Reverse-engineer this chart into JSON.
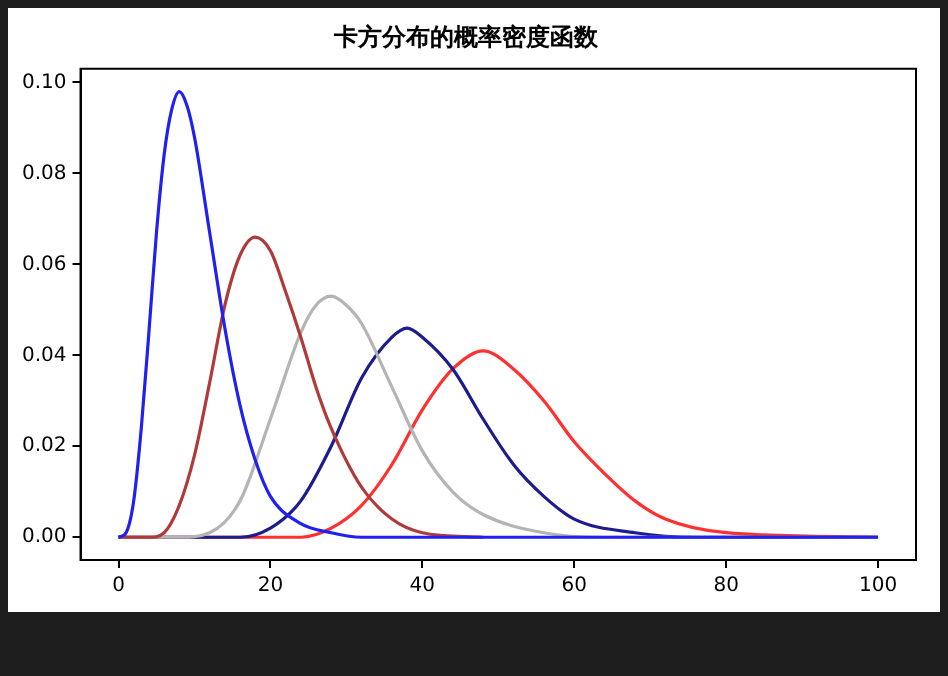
{
  "chart_data": {
    "type": "line",
    "title": "卡方分布的概率密度函数",
    "series": [
      {
        "color": "#2020f0",
        "x": [
          0,
          1,
          2,
          3,
          4,
          5,
          6,
          7,
          8,
          9,
          10,
          12,
          14,
          16,
          18,
          20,
          24,
          28,
          32,
          40,
          60,
          100
        ],
        "values": [
          0,
          0.001,
          0.008,
          0.024,
          0.045,
          0.067,
          0.084,
          0.094,
          0.098,
          0.095,
          0.088,
          0.067,
          0.046,
          0.029,
          0.017,
          0.009,
          0.003,
          0.001,
          0,
          0,
          0,
          0
        ]
      },
      {
        "color": "#b03a3a",
        "x": [
          0,
          4,
          6,
          8,
          10,
          12,
          14,
          16,
          18,
          20,
          22,
          24,
          26,
          28,
          32,
          36,
          40,
          48
        ],
        "values": [
          0,
          0,
          0.001,
          0.007,
          0.018,
          0.034,
          0.051,
          0.062,
          0.066,
          0.063,
          0.054,
          0.044,
          0.033,
          0.024,
          0.011,
          0.004,
          0.001,
          0
        ]
      },
      {
        "color": "#b4b4b4",
        "x": [
          0,
          8,
          12,
          16,
          20,
          24,
          26,
          28,
          30,
          32,
          36,
          40,
          44,
          48,
          56,
          64,
          80,
          100
        ],
        "values": [
          0,
          0,
          0.001,
          0.008,
          0.026,
          0.045,
          0.051,
          0.053,
          0.051,
          0.047,
          0.033,
          0.019,
          0.01,
          0.005,
          0.001,
          0,
          0,
          0
        ]
      },
      {
        "color": "#1c1c8c",
        "x": [
          0,
          16,
          20,
          24,
          28,
          32,
          36,
          38,
          40,
          44,
          48,
          52,
          56,
          60,
          68,
          76,
          90,
          100
        ],
        "values": [
          0,
          0,
          0.002,
          0.008,
          0.02,
          0.035,
          0.044,
          0.046,
          0.044,
          0.037,
          0.026,
          0.016,
          0.009,
          0.004,
          0.001,
          0,
          0,
          0
        ]
      },
      {
        "color": "#ff3030",
        "x": [
          0,
          20,
          24,
          28,
          32,
          36,
          40,
          44,
          48,
          52,
          56,
          60,
          64,
          68,
          72,
          80,
          100
        ],
        "values": [
          0,
          0,
          0,
          0.002,
          0.007,
          0.016,
          0.028,
          0.037,
          0.041,
          0.037,
          0.03,
          0.021,
          0.014,
          0.008,
          0.004,
          0.001,
          0
        ]
      }
    ],
    "xlim": [
      -5,
      105
    ],
    "xticks": [
      0,
      20,
      40,
      60,
      80,
      100
    ],
    "ylim": [
      -0.005,
      0.103
    ],
    "yticks": [
      {
        "value": 0,
        "label": "0.00"
      },
      {
        "value": 0.02,
        "label": "0.02"
      },
      {
        "value": 0.04,
        "label": "0.04"
      },
      {
        "value": 0.06,
        "label": "0.06"
      },
      {
        "value": 0.08,
        "label": "0.08"
      },
      {
        "value": 0.1,
        "label": "0.10"
      }
    ],
    "grid": false,
    "legend": false,
    "marker": "none",
    "line_style": "solid"
  }
}
